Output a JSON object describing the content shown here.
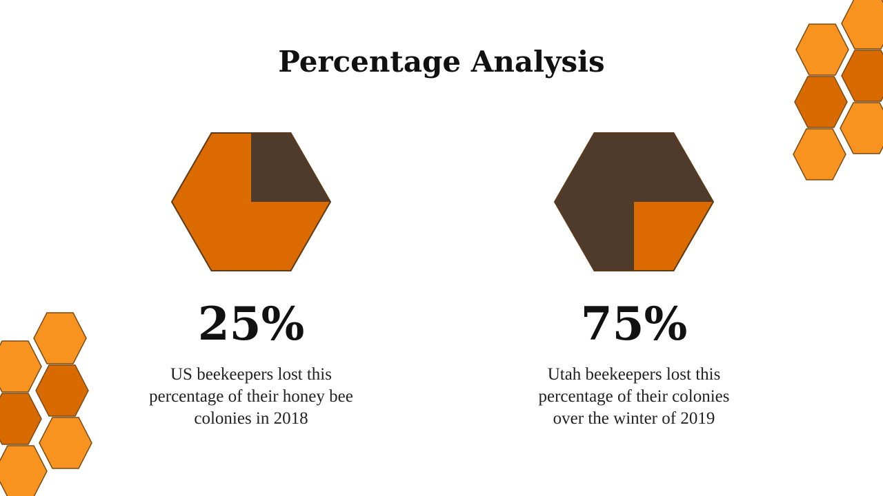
{
  "title": "Percentage Analysis",
  "chart_data": [
    {
      "type": "hexpie",
      "values": [
        25
      ],
      "value_labels": [
        "25%"
      ],
      "color": "#4f3b2b",
      "caption": [
        "US beekeepers lost this",
        "percentage of their honey bee",
        "colonies in 2018"
      ]
    },
    {
      "type": "hexpie",
      "values": [
        75
      ],
      "value_labels": [
        "75%"
      ],
      "color": "#4f3b2b",
      "caption": [
        "Utah beekeepers lost this",
        "percentage of their colonies",
        "over the winter of 2019"
      ]
    }
  ]
}
